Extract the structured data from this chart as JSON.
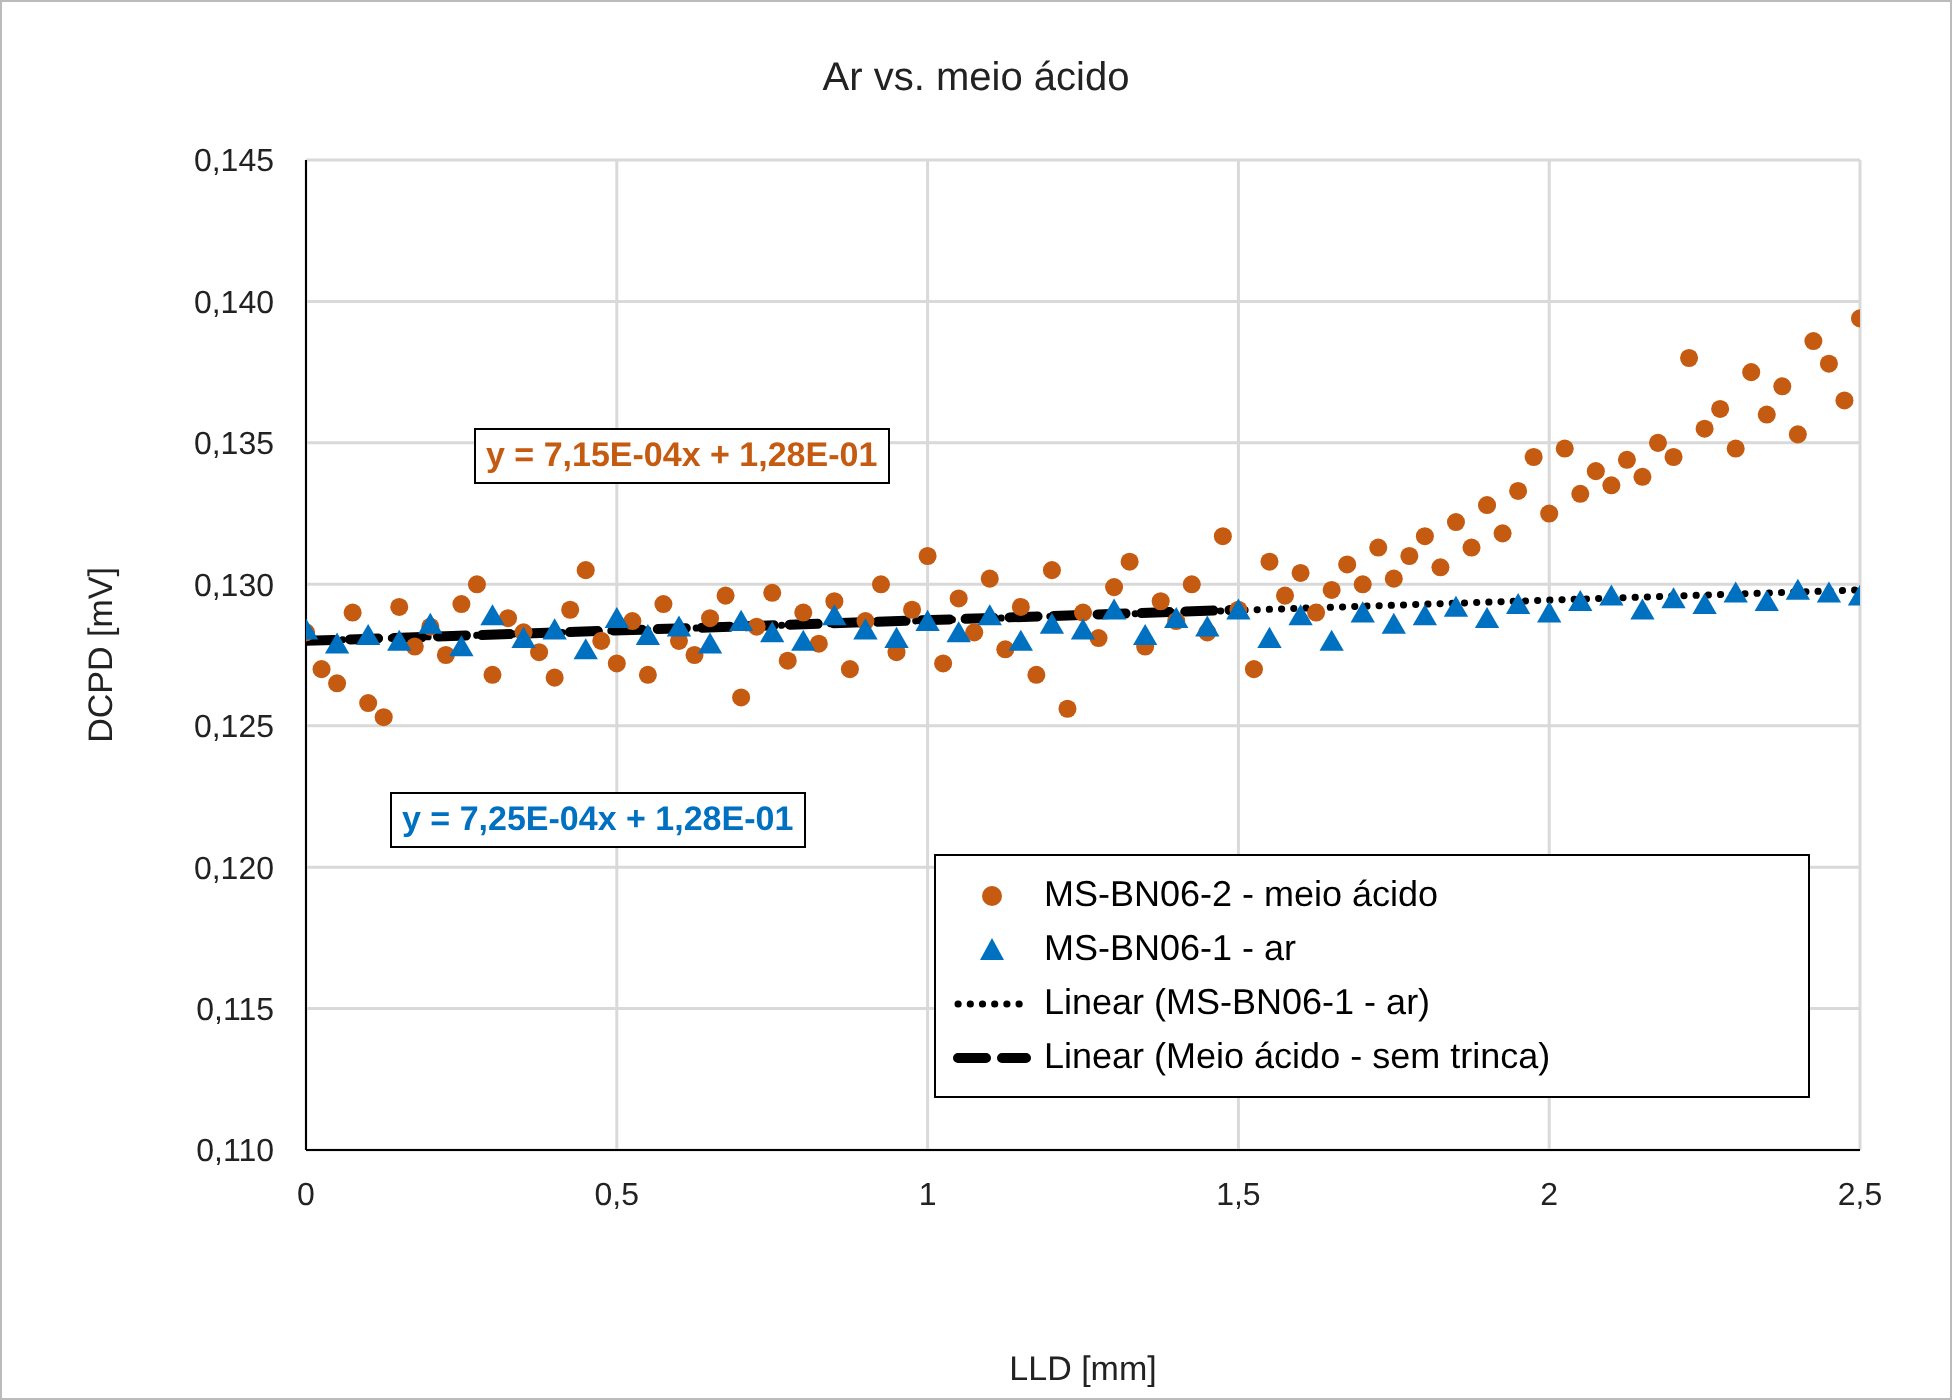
{
  "chart_data": {
    "type": "scatter",
    "title": "Ar vs. meio ácido",
    "xlabel": "LLD [mm]",
    "ylabel": "DCPD [mV]",
    "xlim": [
      0,
      2.5
    ],
    "xticks": [
      0,
      {
        "value": 0.5,
        "label": "0,5"
      },
      1,
      {
        "value": 1.5,
        "label": "1,5"
      },
      2,
      {
        "value": 2.5,
        "label": "2,5"
      }
    ],
    "ylim": [
      0.11,
      0.145
    ],
    "yticks": [
      {
        "value": 0.11,
        "label": "0,110"
      },
      {
        "value": 0.115,
        "label": "0,115"
      },
      {
        "value": 0.12,
        "label": "0,120"
      },
      {
        "value": 0.125,
        "label": "0,125"
      },
      {
        "value": 0.13,
        "label": "0,130"
      },
      {
        "value": 0.135,
        "label": "0,135"
      },
      {
        "value": 0.14,
        "label": "0,140"
      },
      {
        "value": 0.145,
        "label": "0,145"
      }
    ],
    "grid": true,
    "legend": "bottom right",
    "annotations": [
      "y = 7,15E-04x + 1,28E-01",
      "y = 7,25E-04x + 1,28E-01"
    ],
    "series": [
      {
        "name": "MS-BN06-2 - meio ácido",
        "marker": "circle",
        "color": "#c55a11",
        "x": [
          0,
          0.025,
          0.05,
          0.075,
          0.1,
          0.125,
          0.15,
          0.175,
          0.2,
          0.225,
          0.25,
          0.275,
          0.3,
          0.325,
          0.35,
          0.375,
          0.4,
          0.425,
          0.45,
          0.475,
          0.5,
          0.525,
          0.55,
          0.575,
          0.6,
          0.625,
          0.65,
          0.675,
          0.7,
          0.725,
          0.75,
          0.775,
          0.8,
          0.825,
          0.85,
          0.875,
          0.9,
          0.925,
          0.95,
          0.975,
          1,
          1.025,
          1.05,
          1.075,
          1.1,
          1.125,
          1.15,
          1.175,
          1.2,
          1.225,
          1.25,
          1.275,
          1.3,
          1.325,
          1.35,
          1.375,
          1.4,
          1.425,
          1.45,
          1.475,
          1.5,
          1.525,
          1.55,
          1.575,
          1.6,
          1.625,
          1.65,
          1.675,
          1.7,
          1.725,
          1.75,
          1.775,
          1.8,
          1.825,
          1.85,
          1.875,
          1.9,
          1.925,
          1.95,
          1.975,
          2,
          2.025,
          2.05,
          2.075,
          2.1,
          2.125,
          2.15,
          2.175,
          2.2,
          2.225,
          2.25,
          2.275,
          2.3,
          2.325,
          2.35,
          2.375,
          2.4,
          2.425,
          2.45,
          2.475,
          2.5
        ],
        "values": [
          0.1283,
          0.127,
          0.1265,
          0.129,
          0.1258,
          0.1253,
          0.1292,
          0.1278,
          0.1285,
          0.1275,
          0.1293,
          0.13,
          0.1268,
          0.1288,
          0.1283,
          0.1276,
          0.1267,
          0.1291,
          0.1305,
          0.128,
          0.1272,
          0.1287,
          0.1268,
          0.1293,
          0.128,
          0.1275,
          0.1288,
          0.1296,
          0.126,
          0.1285,
          0.1297,
          0.1273,
          0.129,
          0.1279,
          0.1294,
          0.127,
          0.1287,
          0.13,
          0.1276,
          0.1291,
          0.131,
          0.1272,
          0.1295,
          0.1283,
          0.1302,
          0.1277,
          0.1292,
          0.1268,
          0.1305,
          0.1256,
          0.129,
          0.1281,
          0.1299,
          0.1308,
          0.1278,
          0.1294,
          0.1287,
          0.13,
          0.1283,
          0.1317,
          0.1291,
          0.127,
          0.1308,
          0.1296,
          0.1304,
          0.129,
          0.1298,
          0.1307,
          0.13,
          0.1313,
          0.1302,
          0.131,
          0.1317,
          0.1306,
          0.1322,
          0.1313,
          0.1328,
          0.1318,
          0.1333,
          0.1345,
          0.1325,
          0.1348,
          0.1332,
          0.134,
          0.1335,
          0.1344,
          0.1338,
          0.135,
          0.1345,
          0.138,
          0.1355,
          0.1362,
          0.1348,
          0.1375,
          0.136,
          0.137,
          0.1353,
          0.1386,
          0.1378,
          0.1365,
          0.1394
        ]
      },
      {
        "name": "MS-BN06-1 - ar",
        "marker": "triangle",
        "color": "#0070c0",
        "x": [
          0,
          0.05,
          0.1,
          0.15,
          0.2,
          0.25,
          0.3,
          0.35,
          0.4,
          0.45,
          0.5,
          0.55,
          0.6,
          0.65,
          0.7,
          0.75,
          0.8,
          0.85,
          0.9,
          0.95,
          1,
          1.05,
          1.1,
          1.15,
          1.2,
          1.25,
          1.3,
          1.35,
          1.4,
          1.45,
          1.5,
          1.55,
          1.6,
          1.65,
          1.7,
          1.75,
          1.8,
          1.85,
          1.9,
          1.95,
          2,
          2.05,
          2.1,
          2.15,
          2.2,
          2.25,
          2.3,
          2.35,
          2.4,
          2.45,
          2.5
        ],
        "values": [
          0.1283,
          0.1278,
          0.1281,
          0.1279,
          0.1285,
          0.1277,
          0.1288,
          0.128,
          0.1283,
          0.1276,
          0.1287,
          0.1281,
          0.1284,
          0.1278,
          0.1286,
          0.1282,
          0.1279,
          0.1288,
          0.1283,
          0.128,
          0.1286,
          0.1282,
          0.1288,
          0.1279,
          0.1285,
          0.1283,
          0.129,
          0.1281,
          0.1287,
          0.1284,
          0.129,
          0.128,
          0.1288,
          0.1279,
          0.1289,
          0.1285,
          0.1288,
          0.1291,
          0.1287,
          0.1292,
          0.1289,
          0.1293,
          0.1295,
          0.129,
          0.1294,
          0.1292,
          0.1296,
          0.1293,
          0.1297,
          0.1296,
          0.1295
        ]
      },
      {
        "name": "Linear (MS-BN06-1 - ar)",
        "type": "line",
        "marker": "none",
        "line_style": "dotted",
        "color": "#000000",
        "x": [
          0,
          2.5
        ],
        "values": [
          0.128,
          0.1298
        ]
      },
      {
        "name": "Linear (Meio ácido - sem trinca)",
        "type": "line",
        "marker": "none",
        "line_style": "dashed",
        "color": "#000000",
        "x": [
          0,
          1.5
        ],
        "values": [
          0.128,
          0.1291
        ]
      }
    ]
  }
}
